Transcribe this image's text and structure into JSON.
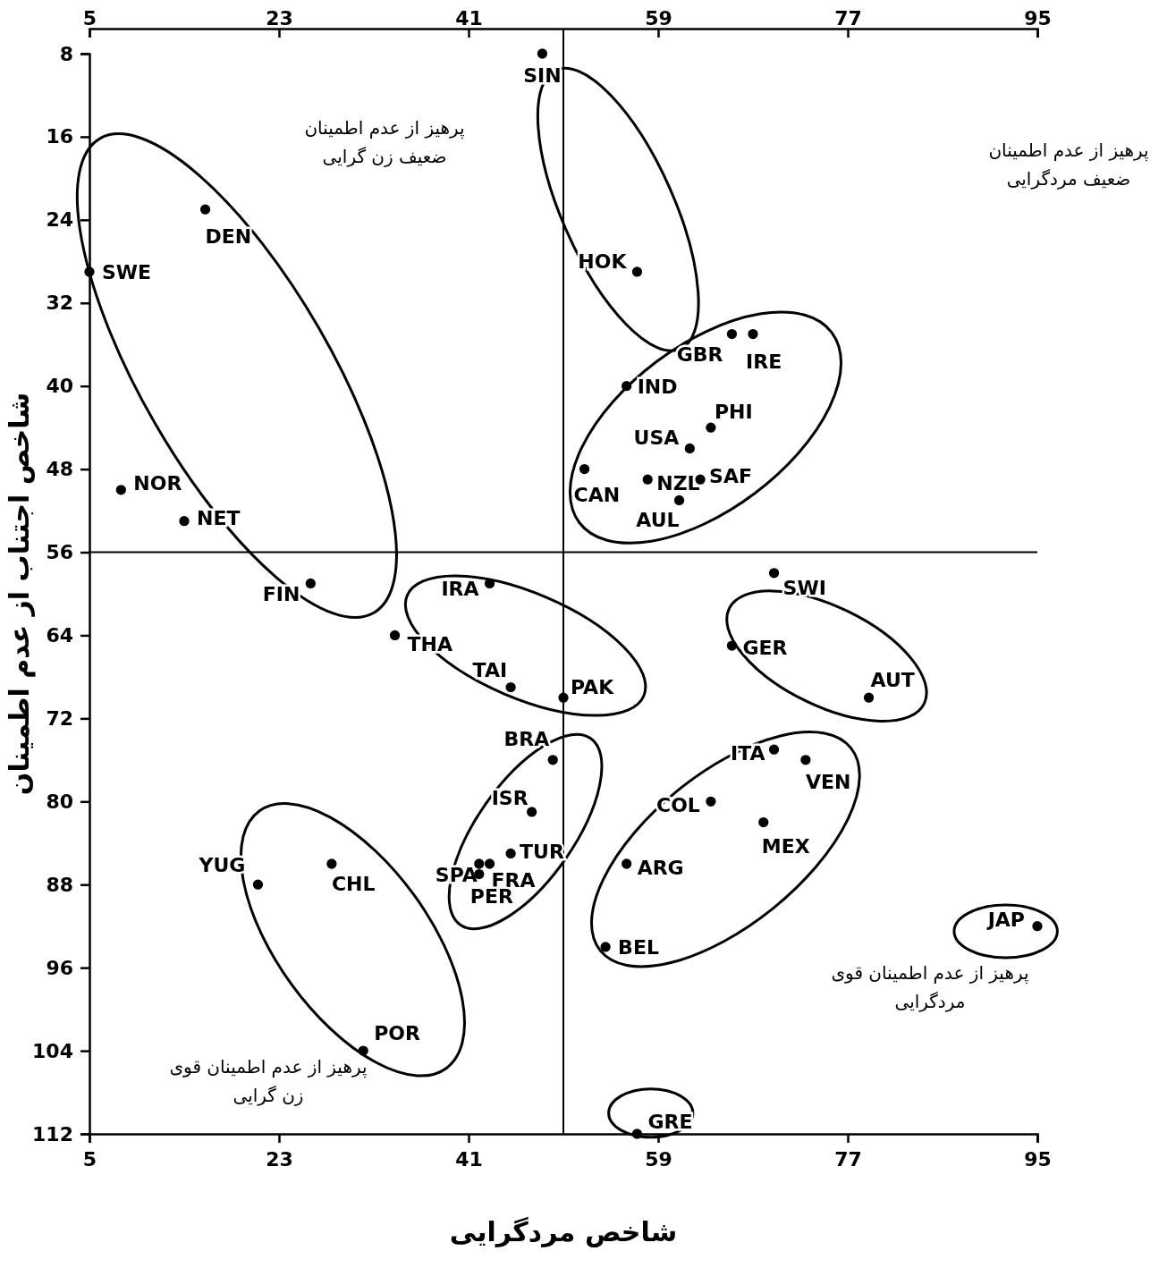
{
  "chart_data": {
    "type": "scatter",
    "xlabel": "شاخص مردگرایی",
    "ylabel": "شاخص اجتناب از عدم اطمینان",
    "xlim": [
      5,
      95
    ],
    "xticks": [
      5,
      23,
      41,
      59,
      77,
      95
    ],
    "x2lim": [
      5,
      95
    ],
    "x2ticks": [
      5,
      23,
      41,
      59,
      77,
      95
    ],
    "ylim": [
      112,
      8
    ],
    "yticks": [
      8,
      16,
      24,
      32,
      40,
      48,
      56,
      64,
      72,
      80,
      88,
      96,
      104,
      112
    ],
    "marker": "circle",
    "ref_lines": [
      {
        "axis": "x",
        "value": 50,
        "color": "#000000"
      },
      {
        "axis": "y",
        "value": 56,
        "color": "#000000"
      }
    ],
    "annotations": [
      "پرهیز از عدم اطمینان\nضعیف زن گرایی",
      "پرهیز از عدم اطمینان\nضعیف مردگرایی",
      "پرهیز از عدم اطمینان قوی\nمردگرایی",
      "پرهیز از عدم اطمینان قوی\nزن گرایی"
    ],
    "series": [
      {
        "name": "SIN",
        "color": "#000000",
        "x": [
          48
        ],
        "values": [
          8
        ]
      },
      {
        "name": "HOK",
        "color": "#000000",
        "x": [
          57
        ],
        "values": [
          29
        ]
      },
      {
        "name": "DEN",
        "color": "#000000",
        "x": [
          16
        ],
        "values": [
          23
        ]
      },
      {
        "name": "SWE",
        "color": "#000000",
        "x": [
          5
        ],
        "values": [
          29
        ]
      },
      {
        "name": "NOR",
        "color": "#000000",
        "x": [
          8
        ],
        "values": [
          50
        ]
      },
      {
        "name": "NET",
        "color": "#000000",
        "x": [
          14
        ],
        "values": [
          53
        ]
      },
      {
        "name": "FIN",
        "color": "#000000",
        "x": [
          26
        ],
        "values": [
          59
        ]
      },
      {
        "name": "GBR",
        "color": "#000000",
        "x": [
          66
        ],
        "values": [
          35
        ]
      },
      {
        "name": "IRE",
        "color": "#000000",
        "x": [
          68
        ],
        "values": [
          35
        ]
      },
      {
        "name": "IND",
        "color": "#000000",
        "x": [
          56
        ],
        "values": [
          40
        ]
      },
      {
        "name": "USA",
        "color": "#000000",
        "x": [
          62
        ],
        "values": [
          46
        ]
      },
      {
        "name": "PHI",
        "color": "#000000",
        "x": [
          64
        ],
        "values": [
          44
        ]
      },
      {
        "name": "CAN",
        "color": "#000000",
        "x": [
          52
        ],
        "values": [
          48
        ]
      },
      {
        "name": "NZL",
        "color": "#000000",
        "x": [
          58
        ],
        "values": [
          49
        ]
      },
      {
        "name": "SAF",
        "color": "#000000",
        "x": [
          63
        ],
        "values": [
          49
        ]
      },
      {
        "name": "AUL",
        "color": "#000000",
        "x": [
          61
        ],
        "values": [
          51
        ]
      },
      {
        "name": "IRA",
        "color": "#000000",
        "x": [
          43
        ],
        "values": [
          59
        ]
      },
      {
        "name": "THA",
        "color": "#000000",
        "x": [
          34
        ],
        "values": [
          64
        ]
      },
      {
        "name": "TAI",
        "color": "#000000",
        "x": [
          45
        ],
        "values": [
          69
        ]
      },
      {
        "name": "PAK",
        "color": "#000000",
        "x": [
          50
        ],
        "values": [
          70
        ]
      },
      {
        "name": "SWI",
        "color": "#000000",
        "x": [
          70
        ],
        "values": [
          58
        ]
      },
      {
        "name": "GER",
        "color": "#000000",
        "x": [
          66
        ],
        "values": [
          65
        ]
      },
      {
        "name": "AUT",
        "color": "#000000",
        "x": [
          79
        ],
        "values": [
          70
        ]
      },
      {
        "name": "BRA",
        "color": "#000000",
        "x": [
          49
        ],
        "values": [
          76
        ]
      },
      {
        "name": "ISR",
        "color": "#000000",
        "x": [
          47
        ],
        "values": [
          81
        ]
      },
      {
        "name": "FRA",
        "color": "#000000",
        "x": [
          43
        ],
        "values": [
          86
        ]
      },
      {
        "name": "SPA",
        "color": "#000000",
        "x": [
          42
        ],
        "values": [
          86
        ]
      },
      {
        "name": "TUR",
        "color": "#000000",
        "x": [
          45
        ],
        "values": [
          85
        ]
      },
      {
        "name": "PER",
        "color": "#000000",
        "x": [
          42
        ],
        "values": [
          87
        ]
      },
      {
        "name": "ITA",
        "color": "#000000",
        "x": [
          70
        ],
        "values": [
          75
        ]
      },
      {
        "name": "VEN",
        "color": "#000000",
        "x": [
          73
        ],
        "values": [
          76
        ]
      },
      {
        "name": "COL",
        "color": "#000000",
        "x": [
          64
        ],
        "values": [
          80
        ]
      },
      {
        "name": "MEX",
        "color": "#000000",
        "x": [
          69
        ],
        "values": [
          82
        ]
      },
      {
        "name": "ARG",
        "color": "#000000",
        "x": [
          56
        ],
        "values": [
          86
        ]
      },
      {
        "name": "BEL",
        "color": "#000000",
        "x": [
          54
        ],
        "values": [
          94
        ]
      },
      {
        "name": "YUG",
        "color": "#000000",
        "x": [
          21
        ],
        "values": [
          88
        ]
      },
      {
        "name": "CHL",
        "color": "#000000",
        "x": [
          28
        ],
        "values": [
          86
        ]
      },
      {
        "name": "POR",
        "color": "#000000",
        "x": [
          31
        ],
        "values": [
          104
        ]
      },
      {
        "name": "GRE",
        "color": "#000000",
        "x": [
          57
        ],
        "values": [
          112
        ]
      },
      {
        "name": "JAP",
        "color": "#000000",
        "x": [
          95
        ],
        "values": [
          92
        ]
      }
    ]
  }
}
